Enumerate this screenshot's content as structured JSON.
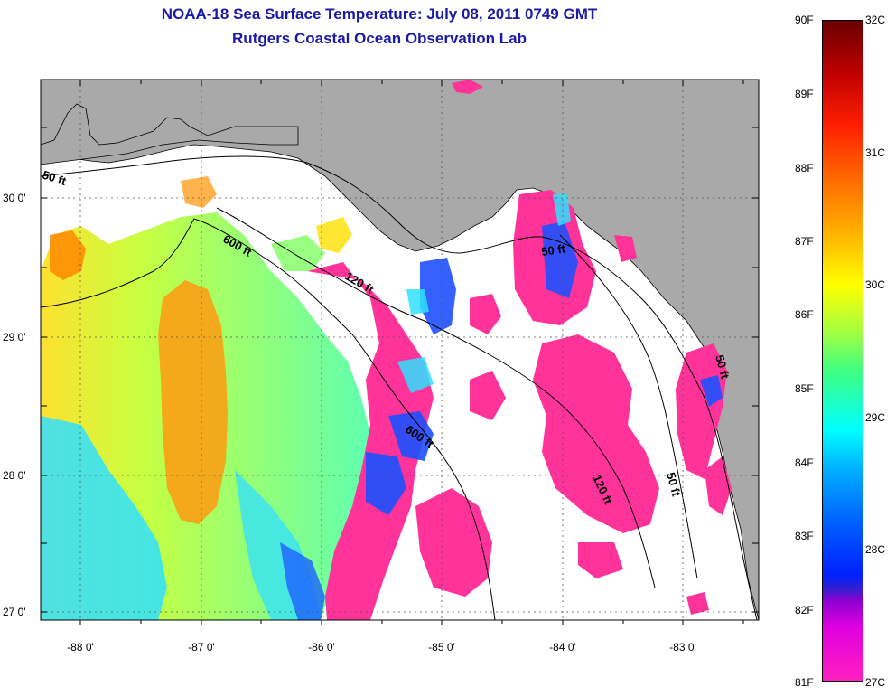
{
  "title": {
    "line1": "NOAA-18 Sea Surface Temperature:  July 08, 2011 0749 GMT",
    "line2": "Rutgers Coastal Ocean Observation Lab"
  },
  "axes": {
    "lat_labels": [
      "30 0'",
      "29 0'",
      "28 0'",
      "27 0'"
    ],
    "lon_labels": [
      "-88 0'",
      "-87 0'",
      "-86 0'",
      "-85 0'",
      "-84 0'",
      "-83 0'"
    ]
  },
  "contours": [
    "50 ft",
    "600 ft",
    "120 ft",
    "50 ft",
    "600 ft",
    "120 ft",
    "50 ft",
    "50 ft"
  ],
  "colorbar": {
    "fahrenheit": [
      "90F",
      "89F",
      "88F",
      "87F",
      "86F",
      "85F",
      "84F",
      "83F",
      "82F",
      "81F"
    ],
    "celsius": [
      "32C",
      "31C",
      "30C",
      "29C",
      "28C",
      "27C"
    ]
  },
  "colors": {
    "land": "#a9a9a9",
    "title": "#1a1aa6",
    "cloud_mask": "#ffffff",
    "low_temp": "#ff3399"
  }
}
